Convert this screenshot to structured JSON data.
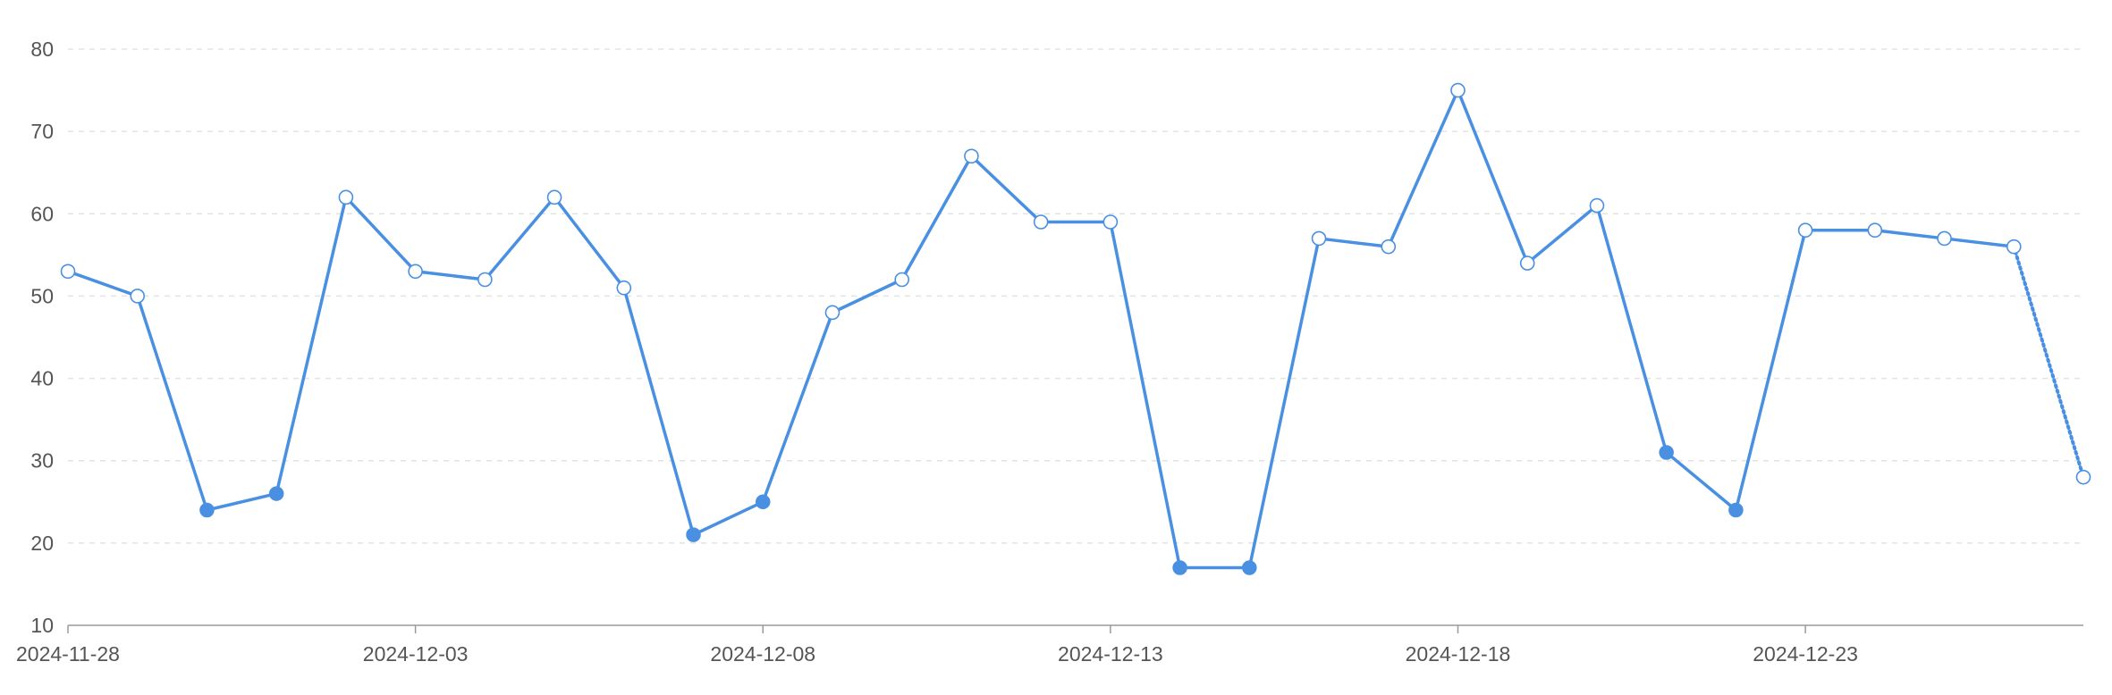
{
  "chart_data": {
    "type": "line",
    "title": "",
    "xlabel": "",
    "ylabel": "",
    "ylim": [
      10,
      80
    ],
    "yticks": [
      10,
      20,
      30,
      40,
      50,
      60,
      70,
      80
    ],
    "xlim": [
      "2024-11-28",
      "2024-12-27"
    ],
    "xticks": [
      "2024-11-28",
      "2024-12-03",
      "2024-12-08",
      "2024-12-13",
      "2024-12-18",
      "2024-12-23"
    ],
    "grid": true,
    "legend": "none",
    "colors": {
      "series": "#4a90e2",
      "point_open_fill": "#ffffff",
      "grid": "#e3e3e3",
      "axis": "#9a9a9a",
      "tick_text": "#555555"
    },
    "series": [
      {
        "x": [
          "2024-11-28",
          "2024-11-29",
          "2024-11-30",
          "2024-12-01",
          "2024-12-02",
          "2024-12-03",
          "2024-12-04",
          "2024-12-05",
          "2024-12-06",
          "2024-12-07",
          "2024-12-08",
          "2024-12-09",
          "2024-12-10",
          "2024-12-11",
          "2024-12-12",
          "2024-12-13",
          "2024-12-14",
          "2024-12-15",
          "2024-12-16",
          "2024-12-17",
          "2024-12-18",
          "2024-12-19",
          "2024-12-20",
          "2024-12-21",
          "2024-12-22",
          "2024-12-23",
          "2024-12-24",
          "2024-12-25",
          "2024-12-26",
          "2024-12-27"
        ],
        "values": [
          53,
          50,
          24,
          26,
          62,
          53,
          52,
          62,
          51,
          21,
          25,
          48,
          52,
          67,
          59,
          59,
          17,
          17,
          57,
          56,
          75,
          54,
          61,
          31,
          24,
          58,
          58,
          57,
          56,
          28
        ],
        "filled_points": [
          false,
          false,
          true,
          true,
          false,
          false,
          false,
          false,
          false,
          true,
          true,
          false,
          false,
          false,
          false,
          false,
          true,
          true,
          false,
          false,
          false,
          false,
          false,
          true,
          true,
          false,
          false,
          false,
          false,
          false
        ],
        "dotted_last_segment": true
      }
    ]
  }
}
